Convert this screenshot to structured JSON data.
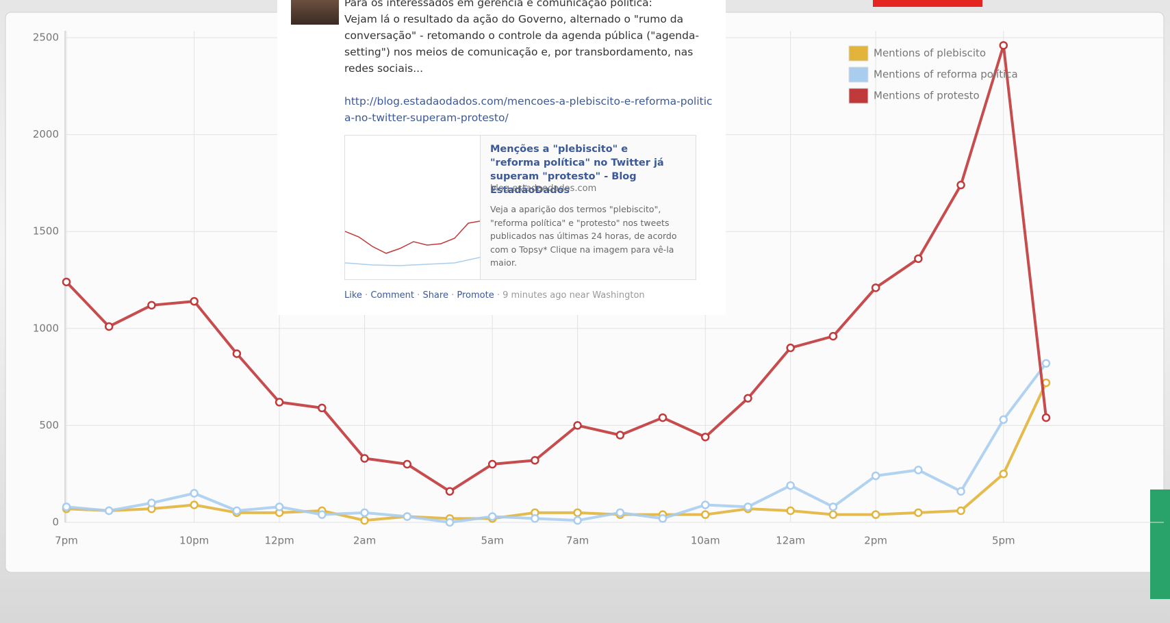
{
  "chart_data": {
    "type": "line",
    "categories": [
      "7pm",
      null,
      null,
      "10pm",
      null,
      "12pm",
      null,
      "2am",
      null,
      null,
      "5am",
      null,
      "7am",
      null,
      null,
      "10am",
      null,
      "12am",
      null,
      "2pm",
      null,
      null,
      "5pm",
      null
    ],
    "series": [
      {
        "name": "Mentions of plebiscito",
        "color": "#e2b43c",
        "values": [
          70,
          60,
          70,
          90,
          50,
          50,
          60,
          10,
          30,
          20,
          20,
          50,
          50,
          40,
          40,
          40,
          70,
          60,
          40,
          40,
          50,
          60,
          250,
          720
        ]
      },
      {
        "name": "Mentions of reforma política",
        "color": "#a9cdee",
        "values": [
          80,
          60,
          100,
          150,
          60,
          80,
          40,
          50,
          30,
          0,
          30,
          20,
          10,
          50,
          20,
          90,
          80,
          190,
          80,
          240,
          270,
          160,
          530,
          820
        ]
      },
      {
        "name": "Mentions of protesto",
        "color": "#c0393b",
        "values": [
          1240,
          1010,
          1120,
          1140,
          870,
          620,
          590,
          330,
          300,
          160,
          300,
          320,
          500,
          450,
          540,
          440,
          640,
          900,
          960,
          1210,
          1360,
          1740,
          2460,
          540
        ]
      }
    ],
    "ylim": [
      0,
      2500
    ],
    "yticks": [
      0,
      500,
      1000,
      1500,
      2000,
      2500
    ],
    "grid": true,
    "legend": "top-right"
  },
  "post": {
    "intro": "Para os interessados em gerência e comunicação política:",
    "body": "Vejam lá o resultado da ação do Governo, alternado o \"rumo da conversação\" - retomando o controle da agenda pública (\"agenda-setting\") nos meios de comunicação e, por transbordamento, nas redes sociais...",
    "link": "http://blog.estadaodados.com/mencoes-a-plebiscito-e-reforma-politica-no-twitter-superam-protesto/",
    "preview": {
      "title": "Menções a \"plebiscito\" e \"reforma política\" no Twitter já superam \"protesto\" - Blog EstadãoDados",
      "domain": "blog.estadaodados.com",
      "description": "Veja a aparição dos termos \"plebiscito\", \"reforma política\" e \"protesto\" nos tweets publicados nas últimas 24 horas, de acordo com o Topsy* Clique na imagem para vê-la maior."
    },
    "actions": [
      "Like",
      "Comment",
      "Share",
      "Promote"
    ],
    "time": "9 minutes ago near Washington"
  }
}
